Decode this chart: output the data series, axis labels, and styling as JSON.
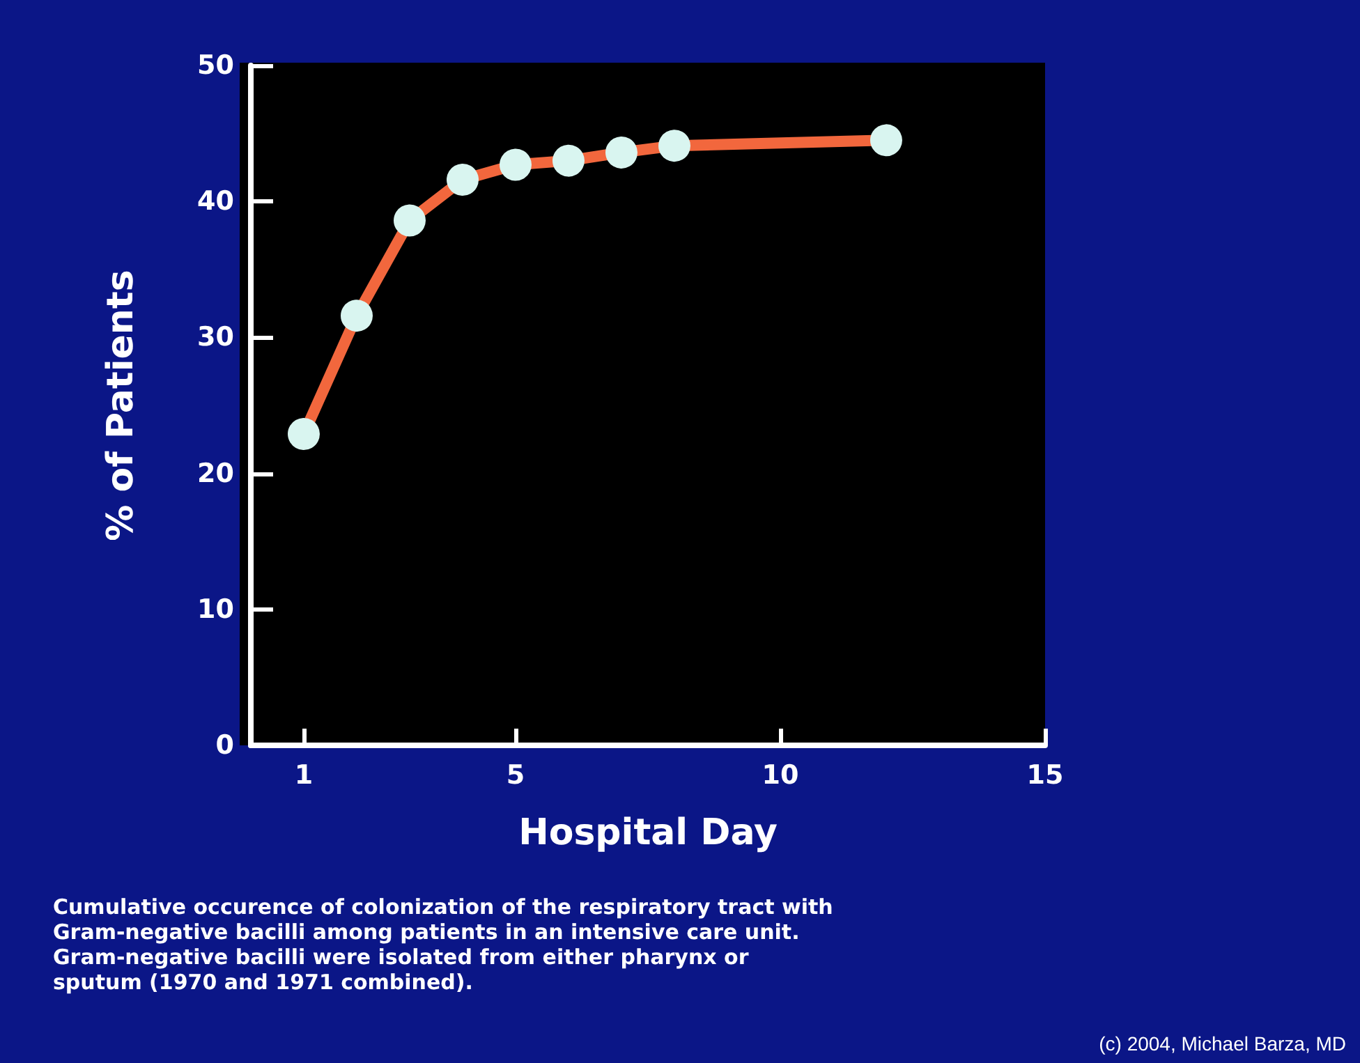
{
  "chart_data": {
    "type": "line",
    "xlabel": "Hospital Day",
    "ylabel": "% of Patients",
    "annotations": [
      "Cumulative occurence of colonization of the respiratory tract with\nGram-negative bacilli among patients in an intensive care unit.\nGram-negative bacilli were isolated from either pharynx or\nsputum (1970 and 1971 combined).",
      "(c) 2004, Michael Barza, MD"
    ],
    "x": [
      1,
      2,
      3,
      4,
      5,
      6,
      7,
      8,
      12
    ],
    "series": [
      {
        "color": "#f2673d",
        "values": [
          22.9,
          31.6,
          38.6,
          41.6,
          42.7,
          43.0,
          43.6,
          44.1,
          44.5
        ]
      }
    ],
    "xlim": [
      0,
      15
    ],
    "xticks": [
      1,
      5,
      10,
      15
    ],
    "ylim": [
      0,
      50
    ],
    "yticks": [
      0,
      10,
      20,
      30,
      40,
      50
    ],
    "marker": "circle",
    "line_style": "solid"
  }
}
